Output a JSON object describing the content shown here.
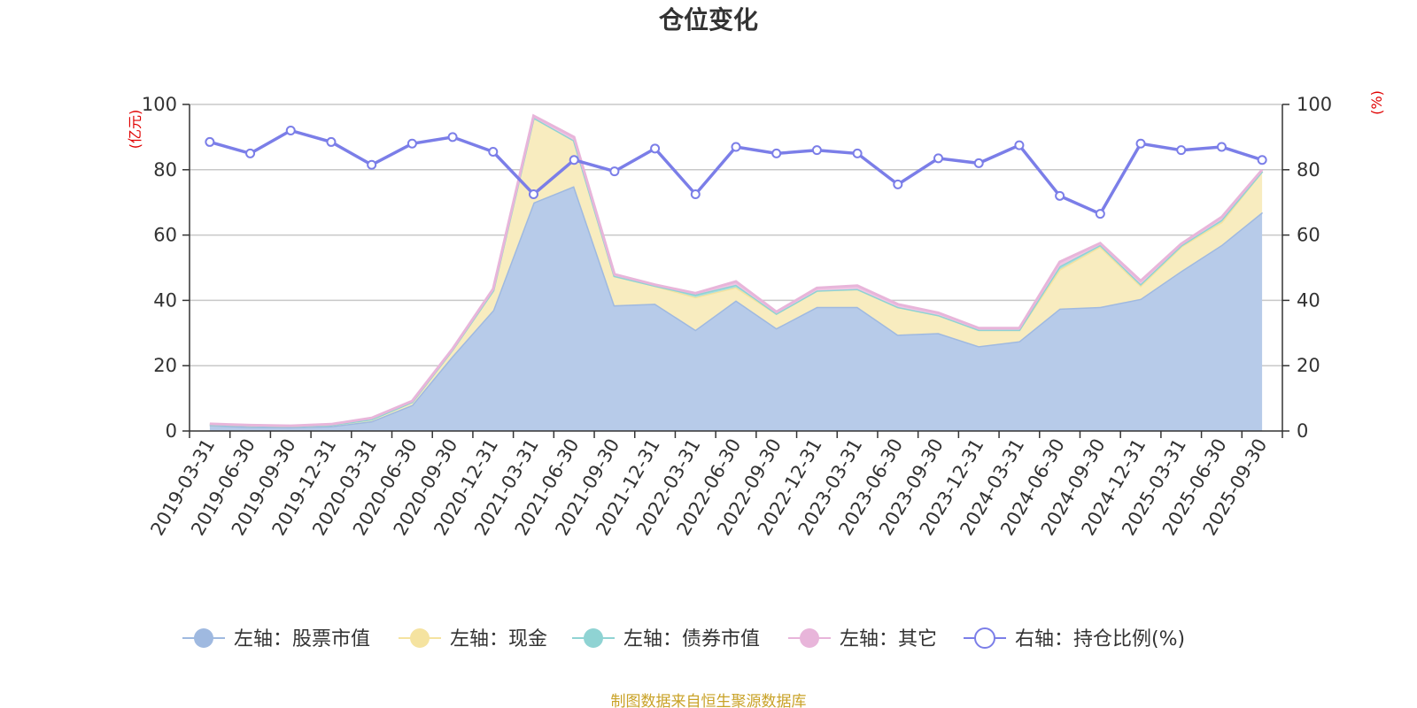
{
  "chart_data": {
    "type": "area",
    "title": "仓位变化",
    "left_unit": "(亿元)",
    "right_unit": "(%)",
    "y_left_range": [
      0,
      100
    ],
    "y_right_range": [
      0,
      100
    ],
    "y_ticks": [
      0,
      20,
      40,
      60,
      80,
      100
    ],
    "categories": [
      "2019-03-31",
      "2019-06-30",
      "2019-09-30",
      "2019-12-31",
      "2020-03-31",
      "2020-06-30",
      "2020-09-30",
      "2020-12-31",
      "2021-03-31",
      "2021-06-30",
      "2021-09-30",
      "2021-12-31",
      "2022-03-31",
      "2022-06-30",
      "2022-09-30",
      "2022-12-31",
      "2023-03-31",
      "2023-06-30",
      "2023-09-30",
      "2023-12-31",
      "2024-03-31",
      "2024-06-30",
      "2024-09-30",
      "2024-12-31",
      "2025-03-31",
      "2025-06-30",
      "2025-09-30"
    ],
    "series": [
      {
        "name": "左轴：股票市值",
        "axis": "left",
        "type": "stacked-area",
        "color": "#9fb9e0",
        "fill": "#b7cbe9",
        "values": [
          1.8,
          1.3,
          1.2,
          1.5,
          3.0,
          8.0,
          23.0,
          37.0,
          70.0,
          75.0,
          38.5,
          39.0,
          31.0,
          40.0,
          31.5,
          38.0,
          38.0,
          29.5,
          30.0,
          26.0,
          27.5,
          37.5,
          38.0,
          40.5,
          49.0,
          57.0,
          67.0
        ]
      },
      {
        "name": "左轴：现金",
        "axis": "left",
        "type": "stacked-area",
        "color": "#f5e3a0",
        "fill": "#f8ecbf",
        "values": [
          0.2,
          0.4,
          0.3,
          0.4,
          0.6,
          0.9,
          2.0,
          6.0,
          26.0,
          14.0,
          9.0,
          5.5,
          10.0,
          4.0,
          4.5,
          5.0,
          5.5,
          8.5,
          5.5,
          5.0,
          3.5,
          12.0,
          18.5,
          4.0,
          7.5,
          7.0,
          12.5
        ]
      },
      {
        "name": "左轴：债券市值",
        "axis": "left",
        "type": "stacked-area",
        "color": "#8fd3d3",
        "fill": "#a8dede",
        "values": [
          0,
          0,
          0,
          0,
          0,
          0,
          0,
          0,
          0,
          0,
          0,
          0,
          0.8,
          0.8,
          0,
          0,
          0,
          0,
          0,
          0,
          0,
          1.0,
          0.5,
          0.5,
          0.3,
          0.7,
          0
        ]
      },
      {
        "name": "左轴：其它",
        "axis": "left",
        "type": "stacked-area",
        "color": "#e8b5da",
        "fill": "#efc6e4",
        "values": [
          0.2,
          0.1,
          0.1,
          0.2,
          0.4,
          0.3,
          0.2,
          0.5,
          0.5,
          1.0,
          0.5,
          0.3,
          0.4,
          1.0,
          0.5,
          0.8,
          1.0,
          0.8,
          0.7,
          0.5,
          0.5,
          1.3,
          0.5,
          1.0,
          0.5,
          0.8,
          0.5
        ]
      },
      {
        "name": "右轴：持仓比例(%)",
        "axis": "right",
        "type": "line",
        "color": "#7b7ee8",
        "values": [
          88.5,
          85.0,
          92.0,
          88.5,
          81.5,
          88.0,
          90.0,
          85.5,
          72.5,
          83.0,
          79.5,
          86.5,
          72.5,
          87.0,
          85.0,
          86.0,
          85.0,
          75.5,
          83.5,
          82.0,
          87.5,
          72.0,
          66.5,
          88.0,
          86.0,
          87.0,
          83.0
        ]
      }
    ],
    "source_note": "制图数据来自恒生聚源数据库"
  }
}
